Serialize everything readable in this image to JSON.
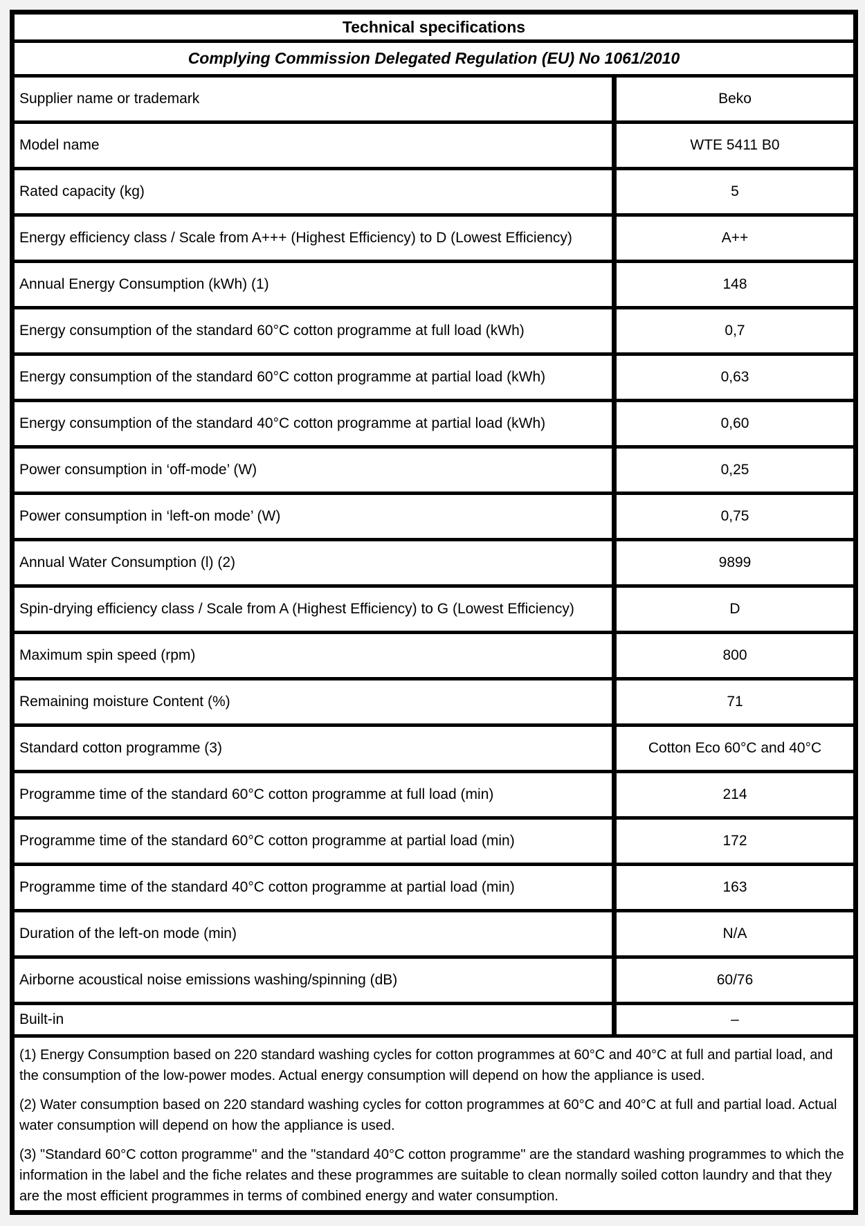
{
  "header": {
    "title": "Technical specifications",
    "subtitle": "Complying Commission Delegated Regulation (EU) No 1061/2010"
  },
  "table": {
    "rows": [
      {
        "label": "Supplier name or trademark",
        "value": "Beko"
      },
      {
        "label": "Model name",
        "value": "WTE 5411 B0"
      },
      {
        "label": "Rated capacity (kg)",
        "value": "5"
      },
      {
        "label": "Energy efficiency class /  Scale from A+++ (Highest Efficiency) to D (Lowest Efficiency)",
        "value": "A++"
      },
      {
        "label": "Annual Energy Consumption (kWh) (1)",
        "value": "148"
      },
      {
        "label": "Energy consumption of the standard 60°C cotton programme at full load  (kWh)",
        "value": "0,7"
      },
      {
        "label": "Energy consumption of the standard 60°C cotton programme at partial load (kWh)",
        "value": "0,63"
      },
      {
        "label": "Energy consumption of the standard 40°C cotton programme at partial load (kWh)",
        "value": "0,60"
      },
      {
        "label": "Power consumption in ‘off-mode’ (W)",
        "value": "0,25"
      },
      {
        "label": "Power consumption in ‘left-on mode’ (W)",
        "value": "0,75"
      },
      {
        "label": "Annual Water Consumption (l) (2)",
        "value": "9899"
      },
      {
        "label": "Spin-drying efficiency class / Scale from A (Highest Efficiency) to G (Lowest Efficiency)",
        "value": "D"
      },
      {
        "label": "Maximum spin speed (rpm)",
        "value": "800"
      },
      {
        "label": "Remaining moisture Content (%)",
        "value": "71"
      },
      {
        "label": "Standard cotton programme (3)",
        "value": "Cotton Eco 60°C and 40°C"
      },
      {
        "label": "Programme time of the standard 60°C cotton programme at full load (min)",
        "value": "214"
      },
      {
        "label": "Programme time of the standard 60°C cotton programme at partial load (min)",
        "value": "172"
      },
      {
        "label": "Programme time of the standard 40°C cotton programme at partial load (min)",
        "value": "163"
      },
      {
        "label": "Duration of the left-on mode (min)",
        "value": "N/A"
      },
      {
        "label": "Airborne acoustical noise emissions washing/spinning (dB)",
        "value": "60/76"
      },
      {
        "label": "Built-in",
        "value": "–"
      }
    ]
  },
  "footnotes": [
    "(1) Energy Consumption based on 220 standard washing cycles for cotton programmes at 60°C and 40°C at full and partial load, and the consumption of the low-power modes. Actual energy consumption will depend on how the appliance is used.",
    "(2) Water consumption based on 220 standard washing cycles for cotton programmes at 60°C and 40°C at full and partial load. Actual water consumption will depend on how the appliance is used.",
    "(3) \"Standard 60°C cotton programme\" and the \"standard 40°C cotton programme\" are the standard washing programmes to which the information in the label and the fiche relates and these programmes are suitable to clean normally soiled cotton laundry and that they are the most efficient programmes in terms of combined energy and water consumption."
  ],
  "colors": {
    "border": "#000000",
    "text": "#000000",
    "page_background": "#f2f2f2",
    "document_background": "#ffffff"
  }
}
